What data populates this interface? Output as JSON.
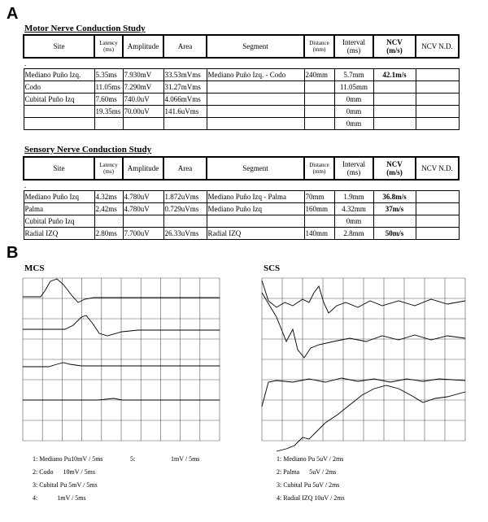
{
  "panel_a": {
    "label": "A",
    "motor": {
      "title": "Motor Nerve Conduction Study",
      "header": [
        "Site",
        "Latency\n(ms)",
        "Amplitude",
        "Area",
        "Segment",
        "Distance\n(mm)",
        "Interval\n(ms)",
        "NCV\n(m/s)",
        "NCV N.D."
      ],
      "marker": ".",
      "rows": [
        [
          "Mediano Puño Izq.",
          "5.35ms",
          "7.930mV",
          "33.53mVms",
          "Mediano Puño Izq. - Codo",
          "240mm",
          "5.7mm",
          "42.1m/s",
          null
        ],
        [
          "Codo",
          "11.05ms",
          "7.290mV",
          "31.27mVms",
          null,
          null,
          "11.05mm",
          null,
          null
        ],
        [
          "Cubital Puño Izq",
          "7.60ms",
          "740.0uV",
          "4.066mVms",
          null,
          null,
          "0mm",
          null,
          null
        ],
        [
          null,
          "19.35ms",
          "70.00uV",
          "141.6uVms",
          null,
          null,
          "0mm",
          null,
          null
        ],
        [
          null,
          null,
          null,
          null,
          null,
          null,
          "0mm",
          null,
          null
        ]
      ]
    },
    "sensory": {
      "title": "Sensory Nerve Conduction Study",
      "header": [
        "Site",
        "Latency\n(ms)",
        "Amplitude",
        "Area",
        "Segment",
        "Distance\n(mm)",
        "Interval\n(ms)",
        "NCV\n(m/s)",
        "NCV N.D."
      ],
      "marker": ".",
      "rows": [
        [
          "Mediano Puño Izq",
          "4.32ms",
          "4.780uV",
          "1.872uVms",
          "Mediano Puño Izq - Palma",
          "70mm",
          "1.9mm",
          "36.8m/s",
          null
        ],
        [
          "Palma",
          "2.42ms",
          "4.780uV",
          "0.729uVms",
          "Mediano Puño Izq",
          "160mm",
          "4.32mm",
          "37m/s",
          null
        ],
        [
          "Cubital Puño Izq",
          null,
          null,
          null,
          null,
          null,
          "0mm",
          null,
          null
        ],
        [
          "Radial IZQ",
          "2.80ms",
          "7.700uV",
          "26.33uVms",
          "Radial IZQ",
          "140mm",
          "2.8mm",
          "50m/s",
          null
        ]
      ]
    }
  },
  "panel_b": {
    "label": "B",
    "mcs": {
      "title": "MCS",
      "legend": [
        "1: Mediano Pu10mV / 5ms",
        "2: Codo      10mV / 5ms",
        "3: Cubital Pu 5mV / 5ms",
        "4:            1mV / 5ms"
      ],
      "extra_channel": "5:",
      "extra_scale": "1mV / 5ms"
    },
    "scs": {
      "title": "SCS",
      "legend": [
        "1: Mediano Pu 5uV / 2ms",
        "2: Palma      5uV / 2ms",
        "3: Cubital Pu 5uV / 2ms",
        "4: Radial IZQ 10uV / 2ms"
      ]
    }
  }
}
